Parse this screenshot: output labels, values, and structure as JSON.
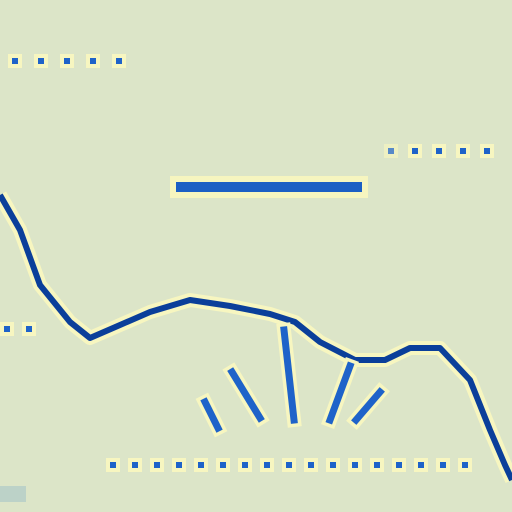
{
  "colors": {
    "background": "#dce5c8",
    "accent": "#1f63c9",
    "halo": "#f7f6c0",
    "dark_line": "#0b3f9a"
  },
  "icons": [
    "dotted-progress-icon",
    "waveform-line",
    "radiating-rays-icon"
  ]
}
